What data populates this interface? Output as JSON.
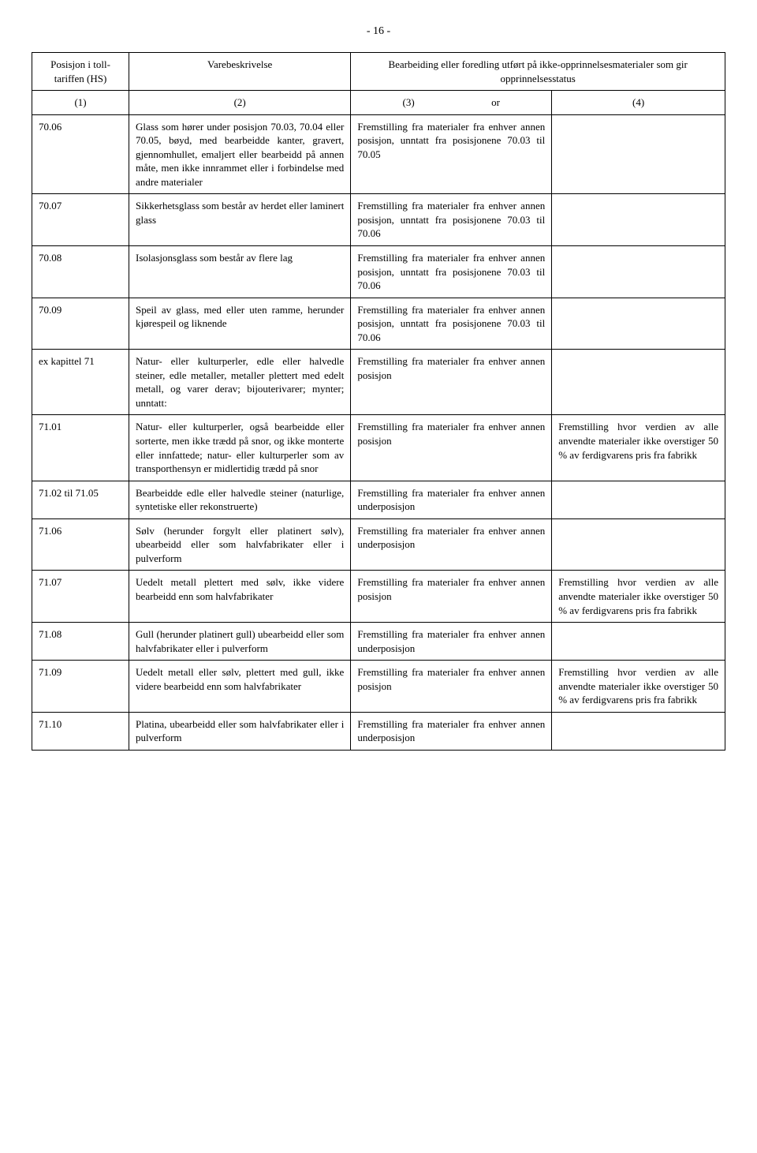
{
  "page_number": "- 16 -",
  "header": {
    "col1": "Posisjon i toll-tariffen (HS)",
    "col2": "Varebeskrivelse",
    "col34": "Bearbeiding eller foredling utført på ikke-opprinnelsesmaterialer som gir opprinnelsesstatus"
  },
  "num_row": {
    "c1": "(1)",
    "c2": "(2)",
    "c3": "(3)",
    "or": "or",
    "c4": "(4)"
  },
  "rows": [
    {
      "c1": "70.06",
      "c2": "Glass som hører under posisjon 70.03, 70.04 eller 70.05, bøyd, med bearbeidde kanter, gravert, gjennomhullet, emaljert eller bearbeidd på annen måte, men ikke innrammet eller i forbindelse med andre materialer",
      "c3": "Fremstilling fra materialer fra enhver annen posisjon, unntatt fra posisjonene 70.03 til 70.05",
      "c4": ""
    },
    {
      "c1": "70.07",
      "c2": "Sikkerhetsglass som består av herdet eller laminert glass",
      "c3": "Fremstilling fra materialer fra enhver annen posisjon, unntatt fra posisjonene 70.03 til 70.06",
      "c4": ""
    },
    {
      "c1": "70.08",
      "c2": "Isolasjonsglass som består av flere lag",
      "c3": "Fremstilling fra materialer fra enhver annen posisjon, unntatt fra posisjonene 70.03 til 70.06",
      "c4": ""
    },
    {
      "c1": "70.09",
      "c2": "Speil av glass, med eller uten ramme, herunder kjørespeil og liknende",
      "c3": "Fremstilling fra materialer fra enhver annen posisjon, unntatt fra posisjonene 70.03 til 70.06",
      "c4": ""
    },
    {
      "c1": "ex kapittel 71",
      "c2": "Natur- eller kulturperler, edle eller halvedle steiner, edle metaller, metaller plettert med edelt metall, og varer derav; bijouterivarer; mynter; unntatt:",
      "c3": "Fremstilling fra materialer fra enhver annen posisjon",
      "c4": ""
    },
    {
      "c1": "71.01",
      "c2": "Natur- eller kulturperler, også bearbeidde eller sorterte, men ikke trædd på snor, og ikke monterte eller innfattede; natur- eller kulturperler som av transporthensyn er midlertidig trædd på snor",
      "c3": "Fremstilling fra materialer fra enhver annen posisjon",
      "c4": "Fremstilling hvor verdien av alle anvendte materialer ikke overstiger 50 % av ferdigvarens pris fra fabrikk"
    },
    {
      "c1": "71.02 til 71.05",
      "c2": "Bearbeidde edle eller halvedle steiner (naturlige, syntetiske eller rekonstruerte)",
      "c3": "Fremstilling fra materialer fra enhver annen underposisjon",
      "c4": ""
    },
    {
      "c1": "71.06",
      "c2": "Sølv (herunder forgylt eller platinert sølv), ubearbeidd eller som halvfabrikater eller i pulverform",
      "c3": "Fremstilling fra materialer fra enhver annen underposisjon",
      "c4": ""
    },
    {
      "c1": "71.07",
      "c2": "Uedelt metall plettert med sølv, ikke videre bearbeidd enn som halvfabrikater",
      "c3": "Fremstilling fra materialer fra enhver annen posisjon",
      "c4": "Fremstilling hvor verdien av alle anvendte materialer ikke overstiger 50 % av ferdigvarens pris fra fabrikk"
    },
    {
      "c1": "71.08",
      "c2": "Gull (herunder platinert gull) ubearbeidd eller som halvfabrikater eller i pulverform",
      "c3": "Fremstilling fra materialer fra enhver annen underposisjon",
      "c4": ""
    },
    {
      "c1": "71.09",
      "c2": "Uedelt metall eller sølv, plettert med gull, ikke videre bearbeidd enn som halvfabrikater",
      "c3": "Fremstilling fra materialer fra enhver annen posisjon",
      "c4": "Fremstilling hvor verdien av alle anvendte materialer ikke overstiger 50 % av ferdigvarens pris fra fabrikk"
    },
    {
      "c1": "71.10",
      "c2": "Platina, ubearbeidd eller som halvfabrikater eller i pulverform",
      "c3": "Fremstilling fra materialer fra enhver annen underposisjon",
      "c4": ""
    }
  ]
}
